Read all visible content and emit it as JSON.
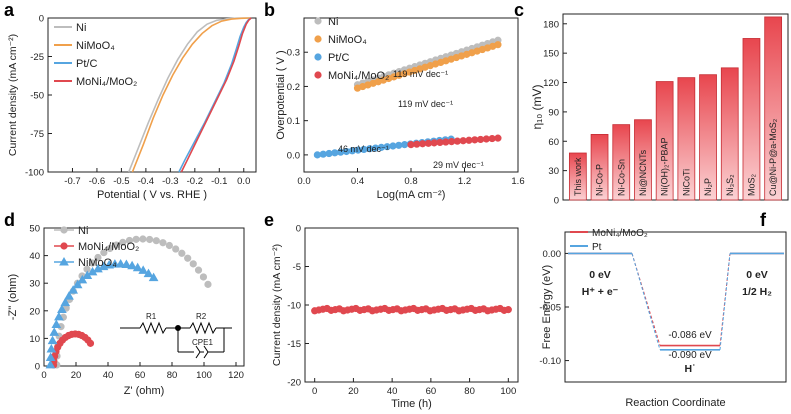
{
  "colors": {
    "gray": "#bdbdbd",
    "orange": "#f0a04b",
    "blue": "#56a5e0",
    "red": "#e0484f",
    "bar_fill": "#f06a70",
    "bar_edge": "#c62c33"
  },
  "chart_data": [
    {
      "panel": "a",
      "type": "line",
      "xlabel": "Potential ( V vs. RHE )",
      "ylabel": "Current density (mA cm⁻²)",
      "xlim": [
        -0.8,
        0.05
      ],
      "ylim": [
        -100,
        0
      ],
      "xticks": [
        -0.7,
        -0.6,
        -0.5,
        -0.4,
        -0.3,
        -0.2,
        -0.1,
        0.0
      ],
      "yticks": [
        0,
        -25,
        -50,
        -75,
        -100
      ],
      "xtick_labels": [
        "-0.7",
        "-0.6",
        "-0.5",
        "-0.4",
        "-0.3",
        "-0.2",
        "-0.1",
        "0.0"
      ],
      "ytick_labels": [
        "0",
        "-25",
        "-50",
        "-75",
        "-100"
      ],
      "legend": [
        "Ni",
        "NiMoO₄",
        "Pt/C",
        "MoNi₄/MoO₂"
      ],
      "series": [
        {
          "name": "Ni",
          "color": "gray",
          "x": [
            -0.47,
            -0.43,
            -0.39,
            -0.35,
            -0.31,
            -0.27,
            -0.23,
            -0.19,
            -0.15,
            -0.11,
            -0.07,
            -0.03,
            0.0,
            0.03
          ],
          "y": [
            -100,
            -84,
            -68,
            -53,
            -39,
            -27,
            -17,
            -9,
            -4,
            -1.5,
            -0.5,
            -0.1,
            0,
            0
          ]
        },
        {
          "name": "NiMoO₄",
          "color": "orange",
          "x": [
            -0.455,
            -0.41,
            -0.37,
            -0.33,
            -0.29,
            -0.25,
            -0.21,
            -0.17,
            -0.13,
            -0.09,
            -0.05,
            -0.01,
            0.03
          ],
          "y": [
            -100,
            -82,
            -65,
            -50,
            -37,
            -26,
            -17,
            -10,
            -5,
            -2,
            -0.7,
            -0.2,
            0
          ]
        },
        {
          "name": "Pt/C",
          "color": "blue",
          "x": [
            -0.265,
            -0.24,
            -0.2,
            -0.16,
            -0.12,
            -0.08,
            -0.05,
            -0.03,
            -0.015,
            0.0,
            0.01,
            0.02,
            0.03
          ],
          "y": [
            -100,
            -92,
            -80,
            -68,
            -55,
            -42,
            -30,
            -20,
            -12,
            -6,
            -3,
            -1,
            0
          ]
        },
        {
          "name": "MoNi₄/MoO₂",
          "color": "red",
          "x": [
            -0.255,
            -0.23,
            -0.19,
            -0.15,
            -0.11,
            -0.07,
            -0.04,
            -0.02,
            -0.005,
            0.01,
            0.02,
            0.03
          ],
          "y": [
            -100,
            -92,
            -79,
            -66,
            -53,
            -40,
            -28,
            -18,
            -10,
            -4,
            -1.5,
            0
          ]
        }
      ]
    },
    {
      "panel": "b",
      "type": "scatter",
      "xlabel": "Log(mA cm⁻²)",
      "ylabel": "Overpotential ( V )",
      "xlim": [
        0.0,
        1.6
      ],
      "ylim": [
        -0.05,
        0.4
      ],
      "xticks": [
        0.0,
        0.4,
        0.8,
        1.2,
        1.6
      ],
      "yticks": [
        0.0,
        0.1,
        0.2,
        0.3
      ],
      "xtick_labels": [
        "0.0",
        "0.4",
        "0.8",
        "1.2",
        "1.6"
      ],
      "ytick_labels": [
        "0.0",
        "0.1",
        "0.2",
        "0.3"
      ],
      "legend": [
        "Ni",
        "NiMoO₄",
        "Pt/C",
        "MoNi₄/MoO₂"
      ],
      "annotations": [
        "119  mV dec⁻¹",
        "119  mV dec⁻¹",
        "46 mV dec⁻¹",
        "29 mV dec⁻¹"
      ],
      "series": [
        {
          "name": "Ni",
          "color": "gray",
          "x_start": 0.4,
          "x_end": 1.45,
          "y_start": 0.205,
          "y_end": 0.335,
          "n": 28
        },
        {
          "name": "NiMoO₄",
          "color": "orange",
          "x_start": 0.4,
          "x_end": 1.45,
          "y_start": 0.195,
          "y_end": 0.322,
          "n": 28
        },
        {
          "name": "Pt/C",
          "color": "blue",
          "x_start": 0.1,
          "x_end": 1.1,
          "y_start": 0.0,
          "y_end": 0.046,
          "n": 24
        },
        {
          "name": "MoNi₄/MoO₂",
          "color": "red",
          "x_start": 0.8,
          "x_end": 1.45,
          "y_start": 0.03,
          "y_end": 0.049,
          "n": 16
        }
      ]
    },
    {
      "panel": "c",
      "type": "bar",
      "ylabel": "η₁₀ (mV)",
      "ylim": [
        0,
        190
      ],
      "yticks": [
        0,
        30,
        60,
        90,
        120,
        150,
        180
      ],
      "ytick_labels": [
        "0",
        "30",
        "60",
        "90",
        "120",
        "150",
        "180"
      ],
      "categories": [
        "This work",
        "Ni-Co-P",
        "Ni-Co-Sn",
        "Ni@NCNTs",
        "Ni(OH)₂-PBAP",
        "NiCoTi",
        "Ni₂P",
        "Ni₃S₂",
        "MoS₂",
        "Cu@Ni-P@a-MoS₂"
      ],
      "values": [
        48,
        67,
        77,
        82,
        121,
        125,
        128,
        135,
        165,
        187
      ]
    },
    {
      "panel": "d",
      "type": "scatter",
      "xlabel": "Z' (ohm)",
      "ylabel": "-Z'' (ohm)",
      "xlim": [
        0,
        125
      ],
      "ylim": [
        0,
        50
      ],
      "xticks": [
        0,
        20,
        40,
        60,
        80,
        100,
        120
      ],
      "yticks": [
        0,
        10,
        20,
        30,
        40,
        50
      ],
      "xtick_labels": [
        "0",
        "20",
        "40",
        "60",
        "80",
        "100",
        "120"
      ],
      "ytick_labels": [
        "0",
        "10",
        "20",
        "30",
        "40",
        "50"
      ],
      "legend": [
        "Ni",
        "MoNi₄/MoO₂",
        "NiMoO₄"
      ],
      "circuit_labels": [
        "R1",
        "R2",
        "CPE1"
      ],
      "series": [
        {
          "name": "Ni",
          "color": "gray",
          "center": 61.5,
          "radius": 53.5,
          "theta_end": 140,
          "n": 32
        },
        {
          "name": "MoNi₄/MoO₂",
          "color": "red",
          "center": 19.5,
          "radius": 13.5,
          "theta_end": 135,
          "n": 16
        },
        {
          "name": "NiMoO₄",
          "color": "blue",
          "center": 47,
          "radius": 43,
          "theta_end": 120,
          "n": 26
        }
      ]
    },
    {
      "panel": "e",
      "type": "line",
      "xlabel": "Time (h)",
      "ylabel": "Current density (mA cm⁻²)",
      "xlim": [
        -5,
        105
      ],
      "ylim": [
        -20,
        0
      ],
      "xticks": [
        0,
        20,
        40,
        60,
        80,
        100
      ],
      "yticks": [
        0,
        -5,
        -10,
        -15,
        -20
      ],
      "xtick_labels": [
        "0",
        "20",
        "40",
        "60",
        "80",
        "100"
      ],
      "ytick_labels": [
        "0",
        "-5",
        "-10",
        "-15",
        "-20"
      ],
      "series": [
        {
          "name": "MoNi₄/MoO₂",
          "color": "red",
          "x_start": 0,
          "x_end": 100,
          "value": -10.6,
          "n": 48
        }
      ]
    },
    {
      "panel": "f",
      "type": "line",
      "xlabel": "Reaction Coordinate",
      "ylabel": "Free Energy (eV)",
      "xlim": [
        0,
        3
      ],
      "ylim": [
        -0.12,
        0.02
      ],
      "yticks": [
        0.0,
        -0.05,
        -0.1
      ],
      "ytick_labels": [
        "0.00",
        "-0.05",
        "-0.10"
      ],
      "legend": [
        "MoNi₄/MoO₂",
        "Pt"
      ],
      "states": [
        "H⁺ + e⁻",
        "H˙",
        "1/2 H₂"
      ],
      "series": [
        {
          "name": "MoNi₄/MoO₂",
          "color": "red",
          "values": [
            0,
            -0.086,
            0
          ]
        },
        {
          "name": "Pt",
          "color": "blue",
          "values": [
            0,
            -0.09,
            0
          ]
        }
      ],
      "labels": {
        "left": "0 eV",
        "right": "0 eV",
        "mid_red": "-0.086 eV",
        "mid_blue": "-0.090 eV"
      }
    }
  ],
  "panel_letters": [
    "a",
    "b",
    "c",
    "d",
    "e",
    "f"
  ]
}
